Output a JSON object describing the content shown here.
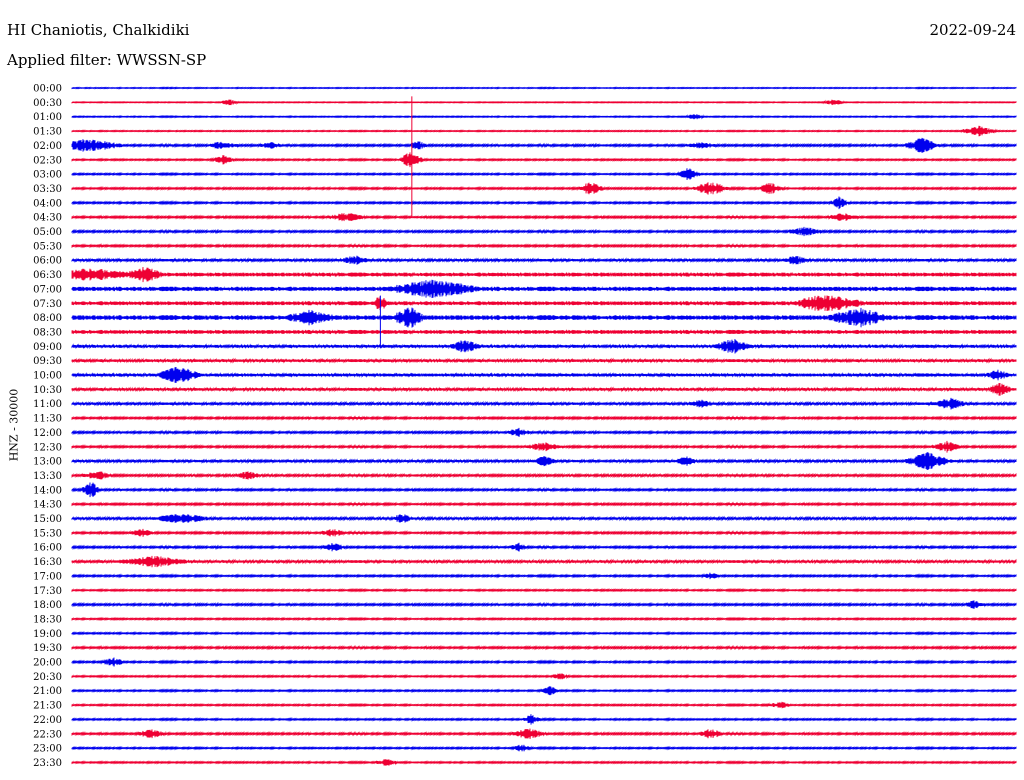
{
  "header": {
    "station": "HI Chaniotis, Chalkidiki",
    "filter": "Applied filter: WWSSN-SP",
    "date": "2022-09-24",
    "channel_label": "HNZ - 30000"
  },
  "colors": {
    "odd": "#0000ee",
    "even": "#ee0033"
  },
  "chart_data": {
    "type": "line",
    "kind": "helicorder",
    "title": "HI Chaniotis, Chalkidiki",
    "subtitle": "Applied filter: WWSSN-SP",
    "date": "2022-09-24",
    "ylabel": "HNZ - 30000",
    "row_labels": [
      "00:00",
      "00:30",
      "01:00",
      "01:30",
      "02:00",
      "02:30",
      "03:00",
      "03:30",
      "04:00",
      "04:30",
      "05:00",
      "05:30",
      "06:00",
      "06:30",
      "07:00",
      "07:30",
      "08:00",
      "08:30",
      "09:00",
      "09:30",
      "10:00",
      "10:30",
      "11:00",
      "11:30",
      "12:00",
      "12:30",
      "13:00",
      "13:30",
      "14:00",
      "14:30",
      "15:00",
      "15:30",
      "16:00",
      "16:30",
      "17:00",
      "17:30",
      "18:00",
      "18:30",
      "19:00",
      "19:30",
      "20:00",
      "20:30",
      "21:00",
      "21:30",
      "22:00",
      "22:30",
      "23:00",
      "23:30"
    ],
    "row_minutes": 30,
    "series_colors": [
      "#0000ee",
      "#ee0033"
    ],
    "noise": [
      0.5,
      0.5,
      0.6,
      0.6,
      1.0,
      0.8,
      0.8,
      0.9,
      0.9,
      1.0,
      1.0,
      1.0,
      1.2,
      2.0,
      2.2,
      2.0,
      2.4,
      2.0,
      1.5,
      1.4,
      1.6,
      1.4,
      1.2,
      1.0,
      1.0,
      1.0,
      1.2,
      1.1,
      1.0,
      1.0,
      1.2,
      1.0,
      1.0,
      1.3,
      0.9,
      0.8,
      1.0,
      0.8,
      0.8,
      1.0,
      0.9,
      0.8,
      0.8,
      0.8,
      0.8,
      1.0,
      0.8,
      0.8
    ],
    "events": [
      {
        "row": 1,
        "min": 5.0,
        "amp": 3,
        "dur": 0.3
      },
      {
        "row": 1,
        "min": 24.2,
        "amp": 3,
        "dur": 0.4
      },
      {
        "row": 2,
        "min": 19.8,
        "amp": 3,
        "dur": 0.3
      },
      {
        "row": 3,
        "min": 28.8,
        "amp": 5,
        "dur": 0.6
      },
      {
        "row": 4,
        "min": 0.5,
        "amp": 6,
        "dur": 1.2
      },
      {
        "row": 4,
        "min": 4.8,
        "amp": 4,
        "dur": 0.5
      },
      {
        "row": 4,
        "min": 6.3,
        "amp": 3,
        "dur": 0.4
      },
      {
        "row": 4,
        "min": 11.0,
        "amp": 4,
        "dur": 0.3
      },
      {
        "row": 4,
        "min": 20.0,
        "amp": 3,
        "dur": 0.5
      },
      {
        "row": 4,
        "min": 27.0,
        "amp": 7,
        "dur": 0.6
      },
      {
        "row": 5,
        "min": 4.8,
        "amp": 4,
        "dur": 0.4
      },
      {
        "row": 5,
        "min": 10.8,
        "amp": 10,
        "dur": 0.4
      },
      {
        "row": 6,
        "min": 19.6,
        "amp": 6,
        "dur": 0.4
      },
      {
        "row": 7,
        "min": 16.5,
        "amp": 7,
        "dur": 0.4
      },
      {
        "row": 7,
        "min": 20.3,
        "amp": 7,
        "dur": 0.6
      },
      {
        "row": 7,
        "min": 22.2,
        "amp": 6,
        "dur": 0.4
      },
      {
        "row": 8,
        "min": 24.4,
        "amp": 6,
        "dur": 0.3
      },
      {
        "row": 9,
        "min": 8.7,
        "amp": 4,
        "dur": 0.6
      },
      {
        "row": 9,
        "min": 24.5,
        "amp": 4,
        "dur": 0.5
      },
      {
        "row": 10,
        "min": 23.3,
        "amp": 4,
        "dur": 0.6
      },
      {
        "row": 12,
        "min": 9.0,
        "amp": 4,
        "dur": 0.5
      },
      {
        "row": 12,
        "min": 23.0,
        "amp": 4,
        "dur": 0.4
      },
      {
        "row": 13,
        "min": 2.3,
        "amp": 7,
        "dur": 0.6
      },
      {
        "row": 13,
        "min": 0.5,
        "amp": 5,
        "dur": 1.5
      },
      {
        "row": 14,
        "min": 11.5,
        "amp": 8,
        "dur": 1.5
      },
      {
        "row": 15,
        "min": 9.8,
        "amp": 8,
        "dur": 0.2
      },
      {
        "row": 15,
        "min": 24.0,
        "amp": 8,
        "dur": 1.2
      },
      {
        "row": 16,
        "min": 7.6,
        "amp": 6,
        "dur": 0.8
      },
      {
        "row": 16,
        "min": 10.7,
        "amp": 10,
        "dur": 0.5
      },
      {
        "row": 16,
        "min": 25.0,
        "amp": 8,
        "dur": 1.0
      },
      {
        "row": 18,
        "min": 12.5,
        "amp": 6,
        "dur": 0.5
      },
      {
        "row": 18,
        "min": 21.0,
        "amp": 7,
        "dur": 0.6
      },
      {
        "row": 20,
        "min": 3.4,
        "amp": 8,
        "dur": 0.7
      },
      {
        "row": 20,
        "min": 29.4,
        "amp": 4,
        "dur": 0.4
      },
      {
        "row": 21,
        "min": 29.5,
        "amp": 6,
        "dur": 0.4
      },
      {
        "row": 22,
        "min": 20.0,
        "amp": 4,
        "dur": 0.4
      },
      {
        "row": 22,
        "min": 27.9,
        "amp": 5,
        "dur": 0.6
      },
      {
        "row": 24,
        "min": 14.2,
        "amp": 4,
        "dur": 0.4
      },
      {
        "row": 25,
        "min": 15.0,
        "amp": 4,
        "dur": 0.6
      },
      {
        "row": 25,
        "min": 27.8,
        "amp": 5,
        "dur": 0.5
      },
      {
        "row": 26,
        "min": 15.0,
        "amp": 4,
        "dur": 0.4
      },
      {
        "row": 26,
        "min": 19.5,
        "amp": 4,
        "dur": 0.4
      },
      {
        "row": 26,
        "min": 27.2,
        "amp": 8,
        "dur": 0.8
      },
      {
        "row": 27,
        "min": 0.8,
        "amp": 4,
        "dur": 0.5
      },
      {
        "row": 27,
        "min": 5.6,
        "amp": 4,
        "dur": 0.4
      },
      {
        "row": 28,
        "min": 0.6,
        "amp": 9,
        "dur": 0.3
      },
      {
        "row": 30,
        "min": 3.5,
        "amp": 4,
        "dur": 1.0
      },
      {
        "row": 30,
        "min": 10.5,
        "amp": 5,
        "dur": 0.3
      },
      {
        "row": 31,
        "min": 2.2,
        "amp": 4,
        "dur": 0.4
      },
      {
        "row": 31,
        "min": 8.3,
        "amp": 4,
        "dur": 0.4
      },
      {
        "row": 32,
        "min": 8.3,
        "amp": 4,
        "dur": 0.4
      },
      {
        "row": 32,
        "min": 14.2,
        "amp": 4,
        "dur": 0.3
      },
      {
        "row": 33,
        "min": 2.6,
        "amp": 5,
        "dur": 1.2
      },
      {
        "row": 34,
        "min": 20.3,
        "amp": 3,
        "dur": 0.3
      },
      {
        "row": 36,
        "min": 28.7,
        "amp": 4,
        "dur": 0.4
      },
      {
        "row": 40,
        "min": 1.3,
        "amp": 4,
        "dur": 0.4
      },
      {
        "row": 41,
        "min": 15.5,
        "amp": 3,
        "dur": 0.3
      },
      {
        "row": 42,
        "min": 15.2,
        "amp": 4,
        "dur": 0.3
      },
      {
        "row": 43,
        "min": 22.5,
        "amp": 3,
        "dur": 0.4
      },
      {
        "row": 44,
        "min": 14.6,
        "amp": 5,
        "dur": 0.3
      },
      {
        "row": 45,
        "min": 2.5,
        "amp": 4,
        "dur": 0.5
      },
      {
        "row": 45,
        "min": 14.5,
        "amp": 5,
        "dur": 0.6
      },
      {
        "row": 45,
        "min": 20.3,
        "amp": 5,
        "dur": 0.4
      },
      {
        "row": 46,
        "min": 14.3,
        "amp": 4,
        "dur": 0.3
      },
      {
        "row": 47,
        "min": 10.0,
        "amp": 3,
        "dur": 0.4
      }
    ],
    "spikes": [
      {
        "row": 1,
        "min": 10.8,
        "up": 6,
        "down": 114
      },
      {
        "row": 16,
        "min": 9.8,
        "up": 22,
        "down": 30
      }
    ]
  }
}
